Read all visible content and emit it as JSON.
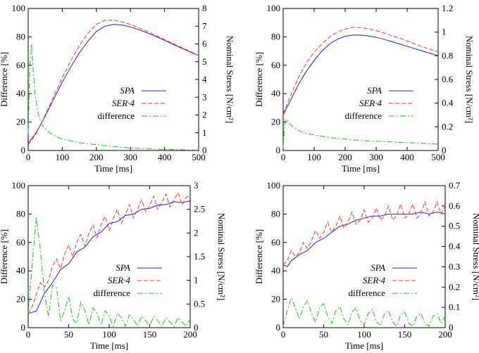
{
  "chart_data": [
    {
      "type": "line",
      "panel": "top-left",
      "xlabel": "Time [ms]",
      "ylabel_left": "Difference [%]",
      "ylabel_right": "Nominal Stress [N/cm²]",
      "xlim": [
        0,
        500
      ],
      "ylim_left": [
        0,
        100
      ],
      "ylim_right": [
        0,
        8
      ],
      "xticks": [
        0,
        100,
        200,
        300,
        400,
        500
      ],
      "yticks_left": [
        0,
        20,
        40,
        60,
        80,
        100
      ],
      "yticks_right": [
        0,
        1,
        2,
        3,
        4,
        5,
        6,
        7,
        8
      ],
      "legend": [
        "SPA",
        "SER·4",
        "difference"
      ],
      "legend_position": "center-right",
      "series": [
        {
          "name": "SPA",
          "axis": "right",
          "color": "#2020d0",
          "dash": "solid",
          "x": [
            0,
            25,
            50,
            75,
            100,
            125,
            150,
            175,
            200,
            225,
            250,
            275,
            300,
            325,
            350,
            375,
            400,
            425,
            450,
            475,
            500
          ],
          "values": [
            0.4,
            1.05,
            1.95,
            2.9,
            3.85,
            4.7,
            5.5,
            6.15,
            6.7,
            7.0,
            7.1,
            7.07,
            6.96,
            6.8,
            6.62,
            6.42,
            6.2,
            5.98,
            5.76,
            5.55,
            5.35
          ]
        },
        {
          "name": "SER·4",
          "axis": "right",
          "color": "#ff3030",
          "dash": "dashed",
          "x": [
            0,
            25,
            50,
            75,
            100,
            125,
            150,
            175,
            200,
            225,
            250,
            275,
            300,
            325,
            350,
            375,
            400,
            425,
            450,
            475,
            500
          ],
          "values": [
            0.3,
            1.0,
            2.0,
            3.05,
            4.1,
            5.05,
            5.9,
            6.6,
            7.1,
            7.33,
            7.34,
            7.25,
            7.1,
            6.9,
            6.7,
            6.47,
            6.25,
            6.02,
            5.8,
            5.58,
            5.35
          ]
        },
        {
          "name": "difference",
          "axis": "left",
          "color": "#20c020",
          "dash": "dashdot",
          "x": [
            0,
            5,
            10,
            15,
            20,
            30,
            40,
            60,
            80,
            100,
            150,
            200,
            250,
            300,
            350,
            400,
            450,
            500
          ],
          "values": [
            12,
            60,
            75,
            55,
            40,
            25,
            18,
            13,
            10,
            8,
            5.5,
            4,
            2.8,
            1.8,
            1.2,
            0.8,
            0.5,
            0.3
          ]
        }
      ]
    },
    {
      "type": "line",
      "panel": "top-right",
      "xlabel": "Time [ms]",
      "ylabel_left": "Difference [%]",
      "ylabel_right": "Nominal Stress [N/cm²]",
      "xlim": [
        0,
        500
      ],
      "ylim_left": [
        0,
        100
      ],
      "ylim_right": [
        0,
        1.2
      ],
      "xticks": [
        0,
        100,
        200,
        300,
        400,
        500
      ],
      "yticks_left": [
        0,
        20,
        40,
        60,
        80,
        100
      ],
      "yticks_right": [
        0,
        0.2,
        0.4,
        0.6,
        0.8,
        1,
        1.2
      ],
      "legend": [
        "SPA",
        "SER·4",
        "difference"
      ],
      "legend_position": "center-right",
      "series": [
        {
          "name": "SPA",
          "axis": "right",
          "color": "#2020d0",
          "dash": "solid",
          "x": [
            0,
            25,
            50,
            75,
            100,
            125,
            150,
            175,
            200,
            225,
            250,
            275,
            300,
            325,
            350,
            375,
            400,
            425,
            450,
            475,
            500
          ],
          "values": [
            0.3,
            0.43,
            0.56,
            0.67,
            0.76,
            0.84,
            0.9,
            0.94,
            0.965,
            0.975,
            0.975,
            0.968,
            0.955,
            0.94,
            0.92,
            0.9,
            0.88,
            0.86,
            0.84,
            0.82,
            0.8
          ]
        },
        {
          "name": "SER·4",
          "axis": "right",
          "color": "#ff3030",
          "dash": "dashed",
          "x": [
            0,
            25,
            50,
            75,
            100,
            125,
            150,
            175,
            200,
            225,
            250,
            275,
            300,
            325,
            350,
            375,
            400,
            425,
            450,
            475,
            500
          ],
          "values": [
            0.31,
            0.47,
            0.62,
            0.74,
            0.83,
            0.9,
            0.96,
            1.0,
            1.025,
            1.04,
            1.038,
            1.028,
            1.012,
            0.992,
            0.97,
            0.95,
            0.925,
            0.9,
            0.875,
            0.855,
            0.835
          ]
        },
        {
          "name": "difference",
          "axis": "left",
          "color": "#20c020",
          "dash": "dashdot",
          "x": [
            0,
            5,
            10,
            15,
            20,
            30,
            50,
            75,
            100,
            150,
            200,
            250,
            300,
            350,
            400,
            450,
            500
          ],
          "values": [
            2,
            20,
            22,
            21,
            19,
            17,
            14,
            12,
            11,
            9,
            8,
            7,
            6.5,
            6,
            5.5,
            5,
            4.5
          ]
        }
      ]
    },
    {
      "type": "line",
      "panel": "bottom-left",
      "xlabel": "Time [ms]",
      "ylabel_left": "Difference [%]",
      "ylabel_right": "Nominal Stress [N/cm²]",
      "xlim": [
        0,
        200
      ],
      "ylim_left": [
        0,
        100
      ],
      "ylim_right": [
        0,
        3
      ],
      "xticks": [
        0,
        50,
        100,
        150,
        200
      ],
      "yticks_left": [
        0,
        20,
        40,
        60,
        80,
        100
      ],
      "yticks_right": [
        0,
        0.5,
        1,
        1.5,
        2,
        2.5,
        3
      ],
      "legend": [
        "SPA",
        "SER·4",
        "difference"
      ],
      "legend_position": "center-right",
      "series": [
        {
          "name": "SPA",
          "axis": "right",
          "color": "#2020d0",
          "dash": "solid",
          "x": [
            0,
            10,
            20,
            30,
            40,
            50,
            60,
            70,
            80,
            90,
            100,
            110,
            120,
            130,
            140,
            150,
            160,
            170,
            180,
            190,
            200
          ],
          "values": [
            0.3,
            0.35,
            0.72,
            0.95,
            1.23,
            1.35,
            1.6,
            1.7,
            1.92,
            2.02,
            2.2,
            2.24,
            2.37,
            2.4,
            2.5,
            2.52,
            2.59,
            2.6,
            2.66,
            2.64,
            2.68
          ]
        },
        {
          "name": "SER·4",
          "axis": "right",
          "color": "#ff3030",
          "dash": "dashed",
          "x": [
            0,
            5,
            10,
            15,
            20,
            25,
            30,
            35,
            40,
            45,
            50,
            55,
            60,
            65,
            70,
            75,
            80,
            85,
            90,
            95,
            100,
            105,
            110,
            115,
            120,
            125,
            130,
            135,
            140,
            145,
            150,
            155,
            160,
            165,
            170,
            175,
            180,
            185,
            190,
            195,
            200
          ],
          "values": [
            0.3,
            0.45,
            0.7,
            0.95,
            0.85,
            1.0,
            1.3,
            1.45,
            1.25,
            1.55,
            1.75,
            1.5,
            1.8,
            1.97,
            1.72,
            2.0,
            2.17,
            1.9,
            2.17,
            2.35,
            2.05,
            2.3,
            2.5,
            2.2,
            2.4,
            2.6,
            2.32,
            2.5,
            2.7,
            2.45,
            2.58,
            2.78,
            2.5,
            2.65,
            2.82,
            2.55,
            2.7,
            2.85,
            2.6,
            2.75,
            2.8
          ]
        },
        {
          "name": "difference",
          "axis": "left",
          "color": "#20c020",
          "dash": "dashdot",
          "x": [
            0,
            5,
            10,
            15,
            20,
            25,
            30,
            35,
            40,
            45,
            50,
            55,
            60,
            65,
            70,
            75,
            80,
            85,
            90,
            95,
            100,
            105,
            110,
            115,
            120,
            125,
            130,
            135,
            140,
            145,
            150,
            155,
            160,
            165,
            170,
            175,
            180,
            185,
            190,
            195,
            200
          ],
          "values": [
            10,
            45,
            78,
            55,
            25,
            8,
            30,
            28,
            5,
            12,
            22,
            6,
            3,
            18,
            12,
            2,
            14,
            10,
            2,
            12,
            8,
            1,
            10,
            7,
            1,
            9,
            6,
            1,
            8,
            5,
            1,
            8,
            5,
            1,
            7,
            4,
            1,
            7,
            4,
            1,
            6
          ]
        }
      ]
    },
    {
      "type": "line",
      "panel": "bottom-right",
      "xlabel": "Time [ms]",
      "ylabel_left": "Difference [%]",
      "ylabel_right": "Nominal Stress [N/cm²]",
      "xlim": [
        0,
        200
      ],
      "ylim_left": [
        0,
        100
      ],
      "ylim_right": [
        0,
        0.7
      ],
      "xticks": [
        0,
        50,
        100,
        150,
        200
      ],
      "yticks_left": [
        0,
        20,
        40,
        60,
        80,
        100
      ],
      "yticks_right": [
        0,
        0.1,
        0.2,
        0.3,
        0.4,
        0.5,
        0.6,
        0.7
      ],
      "legend": [
        "SPA",
        "SER·4",
        "difference"
      ],
      "legend_position": "center-right",
      "series": [
        {
          "name": "SPA",
          "axis": "right",
          "color": "#2020d0",
          "dash": "solid",
          "x": [
            0,
            5,
            10,
            20,
            30,
            40,
            50,
            60,
            70,
            80,
            90,
            100,
            110,
            120,
            130,
            140,
            150,
            160,
            170,
            180,
            190,
            200
          ],
          "values": [
            0.31,
            0.3,
            0.33,
            0.36,
            0.38,
            0.42,
            0.44,
            0.47,
            0.5,
            0.51,
            0.53,
            0.54,
            0.55,
            0.55,
            0.56,
            0.56,
            0.56,
            0.56,
            0.57,
            0.56,
            0.57,
            0.56
          ]
        },
        {
          "name": "SER·4",
          "axis": "right",
          "color": "#ff3030",
          "dash": "dashed",
          "x": [
            0,
            5,
            10,
            15,
            20,
            25,
            30,
            35,
            40,
            45,
            50,
            55,
            60,
            65,
            70,
            75,
            80,
            85,
            90,
            95,
            100,
            105,
            110,
            115,
            120,
            125,
            130,
            135,
            140,
            145,
            150,
            155,
            160,
            165,
            170,
            175,
            180,
            185,
            190,
            195,
            200
          ],
          "values": [
            0.31,
            0.33,
            0.38,
            0.35,
            0.37,
            0.42,
            0.39,
            0.43,
            0.48,
            0.44,
            0.47,
            0.52,
            0.47,
            0.5,
            0.55,
            0.49,
            0.52,
            0.57,
            0.51,
            0.53,
            0.58,
            0.52,
            0.54,
            0.59,
            0.53,
            0.55,
            0.6,
            0.53,
            0.55,
            0.61,
            0.54,
            0.56,
            0.61,
            0.54,
            0.56,
            0.62,
            0.55,
            0.57,
            0.62,
            0.56,
            0.6
          ]
        },
        {
          "name": "difference",
          "axis": "left",
          "color": "#20c020",
          "dash": "dashdot",
          "x": [
            0,
            5,
            10,
            15,
            20,
            25,
            30,
            35,
            40,
            45,
            50,
            55,
            60,
            65,
            70,
            75,
            80,
            85,
            90,
            95,
            100,
            105,
            110,
            115,
            120,
            125,
            130,
            135,
            140,
            145,
            150,
            155,
            160,
            165,
            170,
            175,
            180,
            185,
            190,
            195,
            200
          ],
          "values": [
            1,
            12,
            21,
            14,
            6,
            15,
            19,
            10,
            4,
            14,
            17,
            8,
            3,
            12,
            15,
            6,
            2,
            11,
            14,
            5,
            2,
            10,
            13,
            4,
            2,
            10,
            12,
            4,
            1,
            9,
            11,
            3,
            1,
            8,
            10,
            3,
            1,
            8,
            10,
            3,
            8
          ]
        }
      ]
    }
  ]
}
